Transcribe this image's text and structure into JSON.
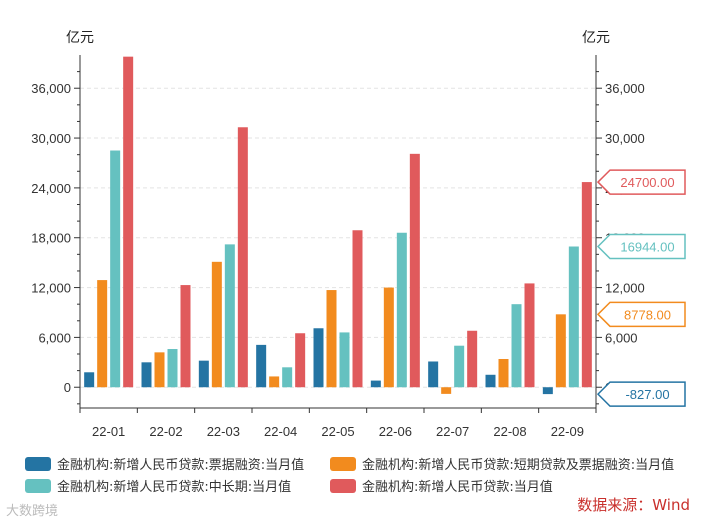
{
  "chart_data": {
    "type": "bar",
    "left_unit": "亿元",
    "right_unit": "亿元",
    "categories": [
      "22-01",
      "22-02",
      "22-03",
      "22-04",
      "22-05",
      "22-06",
      "22-07",
      "22-08",
      "22-09"
    ],
    "ylim": [
      -2500,
      40000
    ],
    "yticks": [
      0,
      6000,
      12000,
      18000,
      24000,
      30000,
      36000
    ],
    "ytick_labels": [
      "0",
      "6,000",
      "12,000",
      "18,000",
      "24,000",
      "30,000",
      "36,000"
    ],
    "series": [
      {
        "name": "金融机构:新增人民币贷款:票据融资:当月值",
        "color": "#2474a3",
        "values": [
          1800,
          3000,
          3200,
          5100,
          7100,
          800,
          3100,
          1500,
          -827
        ]
      },
      {
        "name": "金融机构:新增人民币贷款:短期贷款及票据融资:当月值",
        "color": "#f28b1e",
        "values": [
          12900,
          4200,
          15100,
          1300,
          11700,
          12000,
          -800,
          3400,
          8778
        ]
      },
      {
        "name": "金融机构:新增人民币贷款:中长期:当月值",
        "color": "#65c1c0",
        "values": [
          28500,
          4600,
          17200,
          2400,
          6600,
          18600,
          5000,
          10000,
          16944
        ]
      },
      {
        "name": "金融机构:新增人民币贷款:当月值",
        "color": "#e05a5c",
        "values": [
          39800,
          12300,
          31300,
          6500,
          18900,
          28100,
          6800,
          12500,
          24700
        ]
      }
    ],
    "callouts": [
      {
        "series": 3,
        "label": "24700.00"
      },
      {
        "series": 2,
        "label": "16944.00"
      },
      {
        "series": 1,
        "label": "8778.00"
      },
      {
        "series": 0,
        "label": "-827.00"
      }
    ]
  },
  "source": "数据来源：Wind",
  "watermark": "大数跨境"
}
